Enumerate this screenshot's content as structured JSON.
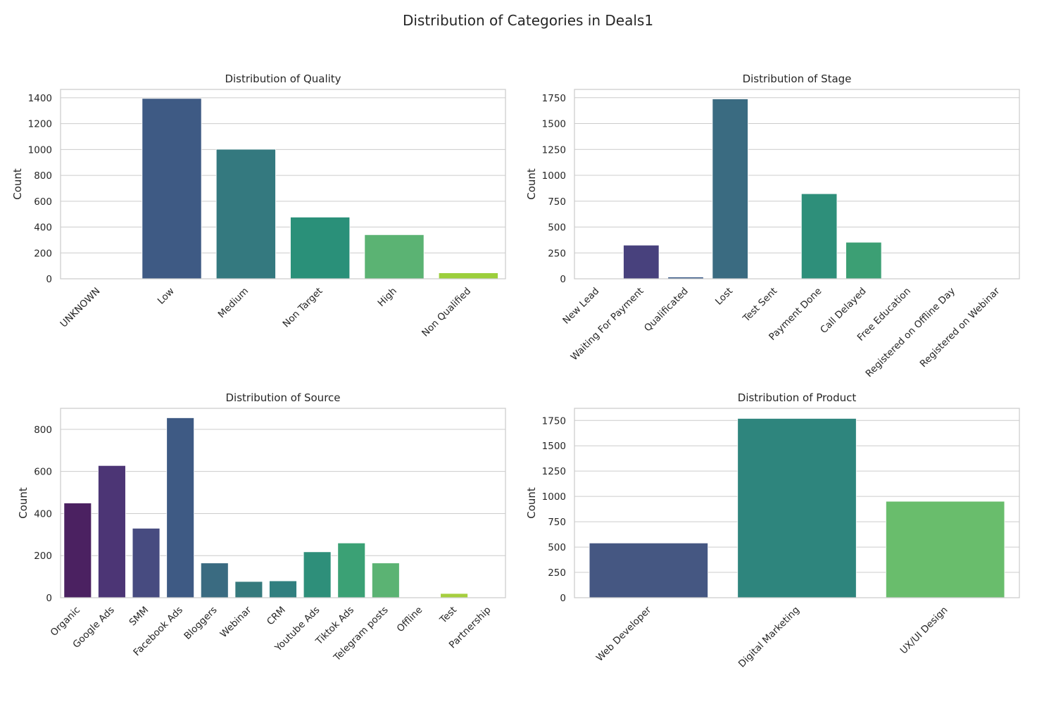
{
  "figure": {
    "title": "Distribution of Categories in Deals1"
  },
  "chart_data": [
    {
      "type": "bar",
      "title": "Distribution of Quality",
      "xlabel": "",
      "ylabel": "Count",
      "categories": [
        "UNKNOWN",
        "Low",
        "Medium",
        "Non Target",
        "High",
        "Non Qualified"
      ],
      "values": [
        0,
        1395,
        1002,
        477,
        341,
        46
      ],
      "ylim": [
        0,
        1465
      ],
      "yticks": [
        0,
        200,
        400,
        600,
        800,
        1000,
        1200,
        1400
      ],
      "colors": [
        "#482878",
        "#3e5a84",
        "#34797f",
        "#2a9079",
        "#5bb373",
        "#9ccf3c"
      ],
      "grid": true,
      "legend": "none"
    },
    {
      "type": "bar",
      "title": "Distribution of Stage",
      "xlabel": "",
      "ylabel": "Count",
      "categories": [
        "New Lead",
        "Waiting For Payment",
        "Qualificated",
        "Lost",
        "Test Sent",
        "Payment Done",
        "Call Delayed",
        "Free Education",
        "Registered on Offline Day",
        "Registered on Webinar"
      ],
      "values": [
        0,
        325,
        17,
        1738,
        0,
        822,
        353,
        0,
        0,
        0
      ],
      "ylim": [
        0,
        1830
      ],
      "yticks": [
        0,
        250,
        500,
        750,
        1000,
        1250,
        1500,
        1750
      ],
      "colors": [
        "#440154",
        "#48417d",
        "#3a5a88",
        "#3a6b81",
        "#2e7f82",
        "#2e8f7a",
        "#3c9f74",
        "#6ab86a",
        "#9fd24e",
        "#d3e21b"
      ],
      "grid": true,
      "legend": "none"
    },
    {
      "type": "bar",
      "title": "Distribution of Source",
      "xlabel": "",
      "ylabel": "Count",
      "categories": [
        "Organic",
        "Google Ads",
        "SMM",
        "Facebook Ads",
        "Bloggers",
        "Webinar",
        "CRM",
        "Youtube Ads",
        "Tiktok Ads",
        "Telegram posts",
        "Offline",
        "Test",
        "Partnership"
      ],
      "values": [
        450,
        628,
        330,
        855,
        165,
        77,
        80,
        218,
        260,
        165,
        0,
        20,
        0
      ],
      "ylim": [
        0,
        900
      ],
      "yticks": [
        0,
        200,
        400,
        600,
        800
      ],
      "colors": [
        "#4b2161",
        "#4c3575",
        "#474b80",
        "#3e5a84",
        "#3a6b81",
        "#367a7d",
        "#317f7f",
        "#2e8f7a",
        "#3ba175",
        "#5bb373",
        "#8ccd4f",
        "#a6cf3f",
        "#d3e21b"
      ],
      "grid": true,
      "legend": "none"
    },
    {
      "type": "bar",
      "title": "Distribution of Product",
      "xlabel": "",
      "ylabel": "Count",
      "categories": [
        "Web Developer",
        "Digital Marketing",
        "UX/UI Design"
      ],
      "values": [
        540,
        1770,
        952
      ],
      "ylim": [
        0,
        1870
      ],
      "yticks": [
        0,
        250,
        500,
        750,
        1000,
        1250,
        1500,
        1750
      ],
      "colors": [
        "#455782",
        "#2e857d",
        "#69bd6c"
      ],
      "grid": true,
      "legend": "none"
    }
  ]
}
